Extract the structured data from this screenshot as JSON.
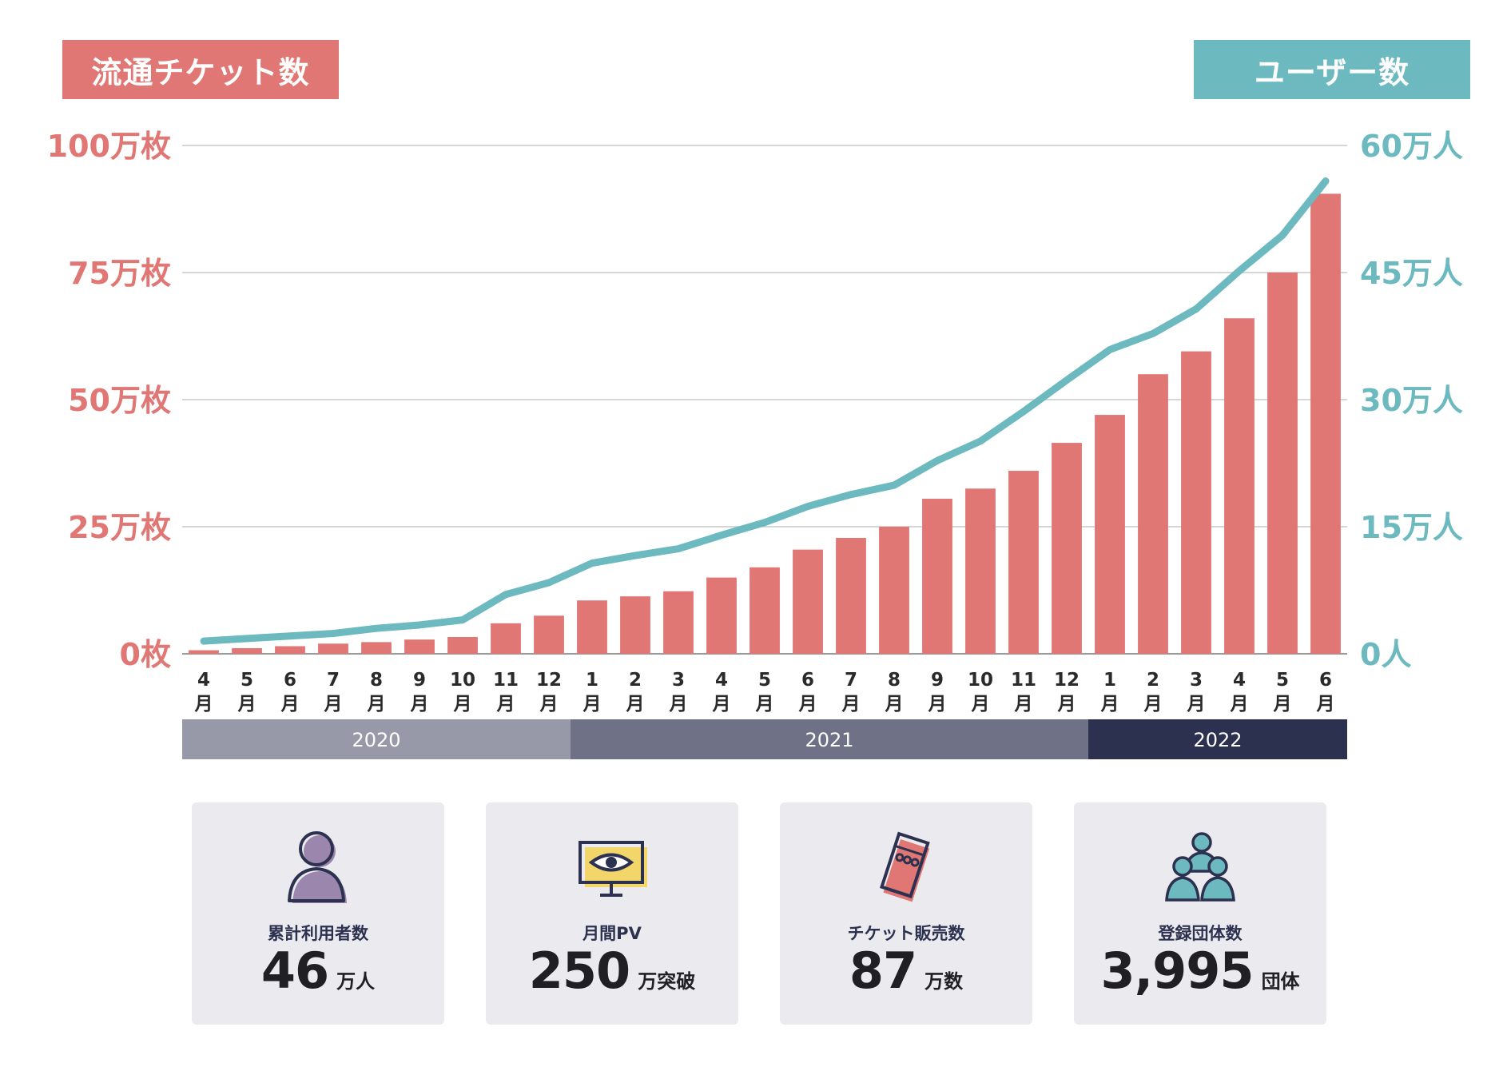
{
  "legend": {
    "left": "流通チケット数",
    "right": "ユーザー数"
  },
  "colors": {
    "bar": "#e07774",
    "line": "#6cb9bf",
    "grid": "#c8c8c8",
    "year_2020": "#9899a8",
    "year_2021": "#6f7286",
    "year_2022": "#2c3150"
  },
  "chart_data": {
    "type": "bar",
    "categories": [
      "4",
      "5",
      "6",
      "7",
      "8",
      "9",
      "10",
      "11",
      "12",
      "1",
      "2",
      "3",
      "4",
      "5",
      "6",
      "7",
      "8",
      "9",
      "10",
      "11",
      "12",
      "1",
      "2",
      "3",
      "4",
      "5",
      "6"
    ],
    "month_suffix": "月",
    "series": [
      {
        "name": "流通チケット数",
        "axis": "left",
        "type": "bar",
        "unit": "万枚",
        "values": [
          0.7,
          1.1,
          1.5,
          2.0,
          2.3,
          2.8,
          3.3,
          6.0,
          7.5,
          10.5,
          11.3,
          12.3,
          15.0,
          17.0,
          20.5,
          22.8,
          25.0,
          30.5,
          32.5,
          36.0,
          41.5,
          47.0,
          55.0,
          59.5,
          66.0,
          75.0,
          90.5
        ]
      },
      {
        "name": "ユーザー数",
        "axis": "right",
        "type": "line",
        "unit": "万人",
        "values": [
          1.5,
          1.8,
          2.1,
          2.4,
          3.0,
          3.4,
          4.0,
          7.0,
          8.4,
          10.7,
          11.6,
          12.4,
          14.0,
          15.5,
          17.4,
          18.8,
          19.9,
          22.8,
          25.1,
          28.6,
          32.3,
          35.9,
          37.8,
          40.7,
          45.2,
          49.4,
          55.8
        ]
      }
    ],
    "y_left": {
      "ylim": [
        0,
        100
      ],
      "ticks": [
        "0枚",
        "25万枚",
        "50万枚",
        "75万枚",
        "100万枚"
      ]
    },
    "y_right": {
      "ylim": [
        0,
        60
      ],
      "ticks": [
        "0人",
        "15万人",
        "30万人",
        "45万人",
        "60万人"
      ]
    },
    "years": [
      {
        "label": "2020",
        "months": 9
      },
      {
        "label": "2021",
        "months": 12
      },
      {
        "label": "2022",
        "months": 6
      }
    ],
    "grid": true
  },
  "stats": [
    {
      "label": "累計利用者数",
      "value": "46",
      "unit": "万人",
      "icon": "person-icon"
    },
    {
      "label": "月間PV",
      "value": "250",
      "unit": "万突破",
      "icon": "monitor-eye-icon"
    },
    {
      "label": "チケット販売数",
      "value": "87",
      "unit": "万数",
      "icon": "ticket-icon"
    },
    {
      "label": "登録団体数",
      "value": "3,995",
      "unit": "団体",
      "icon": "group-icon"
    }
  ]
}
